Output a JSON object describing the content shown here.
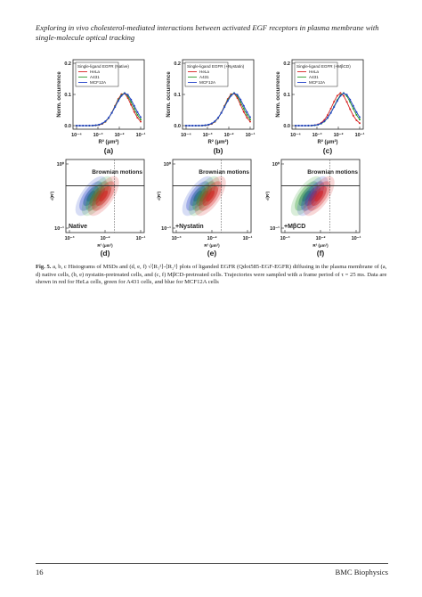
{
  "header": {
    "running_title": [
      "Exploring in vivo cholesterol-mediated interactions between activated EGF receptors in plasma membrane with",
      "single-molecule optical tracking"
    ]
  },
  "figure": {
    "panels": [
      {
        "label": "(a)",
        "y_label": "Norm. occurrence",
        "x_label": "R² (μm²)",
        "legend_title": "Single-ligand EGFR (Native)",
        "legend": [
          "HeLa",
          "A431",
          "MCF12A"
        ],
        "y_ticks": [
          "0.2",
          "0.1",
          "0.0"
        ],
        "x_ticks": [
          "10⁻⁴",
          "10⁻³",
          "10⁻²",
          "10⁻¹"
        ]
      },
      {
        "label": "(b)",
        "y_label": "Norm. occurrence",
        "x_label": "R² (μm²)",
        "legend_title": "Single-ligand EGFR (+Nystatin)",
        "legend": [
          "HeLa",
          "A431",
          "MCF12A"
        ],
        "y_ticks": [
          "0.2",
          "0.1",
          "0.0"
        ],
        "x_ticks": [
          "10⁻⁴",
          "10⁻³",
          "10⁻²",
          "10⁻¹"
        ]
      },
      {
        "label": "(c)",
        "y_label": "Norm. occurrence",
        "x_label": "R² (μm²)",
        "legend_title": "Single-ligand EGFR (+MβCD)",
        "legend": [
          "HeLa",
          "A431",
          "MCF12A"
        ],
        "y_ticks": [
          "0.2",
          "0.1",
          "0.0"
        ],
        "x_ticks": [
          "10⁻⁴",
          "10⁻³",
          "10⁻²",
          "10⁻¹"
        ]
      },
      {
        "label": "(d)",
        "y_label": "√(R²)",
        "x_label": "R² (μm²)",
        "annotations": [
          "Brownian motions",
          "Native"
        ],
        "y_ticks": [
          "10⁰",
          "10⁻¹"
        ],
        "x_ticks": [
          "10⁻³",
          "10⁻²",
          "10⁻¹"
        ]
      },
      {
        "label": "(e)",
        "y_label": "√(R²)",
        "x_label": "R² (μm²)",
        "annotations": [
          "Brownian motions",
          "+Nystatin"
        ],
        "y_ticks": [
          "10⁰",
          "10⁻¹"
        ],
        "x_ticks": [
          "10⁻³",
          "10⁻²",
          "10⁻¹"
        ]
      },
      {
        "label": "(f)",
        "y_label": "√(R²)",
        "x_label": "R² (μm²)",
        "annotations": [
          "Brownian motions",
          "+MβCD"
        ],
        "y_ticks": [
          "10⁰",
          "10⁻¹"
        ],
        "x_ticks": [
          "10⁻³",
          "10⁻²",
          "10⁻¹"
        ]
      }
    ],
    "caption": {
      "lead": "Fig. 5.",
      "text": "a, b, c Histograms of MSDs and (d, e, f) √⟨R₁²⟩-⟨R₂²⟩ plots of liganded EGFR (Qdot585-EGF-EGFR) diffusing in the plasma membrane of (a, d) native cells, (b, e) nystatin-pretreated cells, and (c, f) MβCD-pretreated cells. Trajectories were sampled with a frame period of τ = 25 ms. Data are shown in red for HeLa cells, green for A431 cells, and blue for MCF12A cells"
    }
  },
  "footer": {
    "page": "16",
    "journal": "BMC Biophysics"
  }
}
